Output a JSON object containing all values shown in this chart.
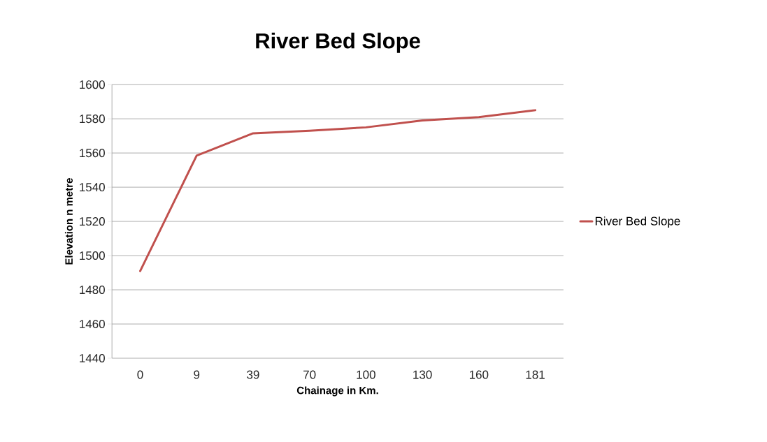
{
  "chart_data": {
    "type": "line",
    "title": "River Bed Slope",
    "xlabel": "Chainage in Km.",
    "ylabel": "Elevation n metre",
    "categories": [
      "0",
      "9",
      "39",
      "70",
      "100",
      "130",
      "160",
      "181"
    ],
    "series": [
      {
        "name": "River Bed Slope",
        "color": "#c0504d",
        "values": [
          1491,
          1558.5,
          1571.5,
          1573,
          1575,
          1579,
          1581,
          1585
        ]
      }
    ],
    "ylim": [
      1440,
      1600
    ],
    "yticks": [
      1440,
      1460,
      1480,
      1500,
      1520,
      1540,
      1560,
      1580,
      1600
    ],
    "grid": "y",
    "legend": "right",
    "marker": "none",
    "line_style": "solid"
  }
}
